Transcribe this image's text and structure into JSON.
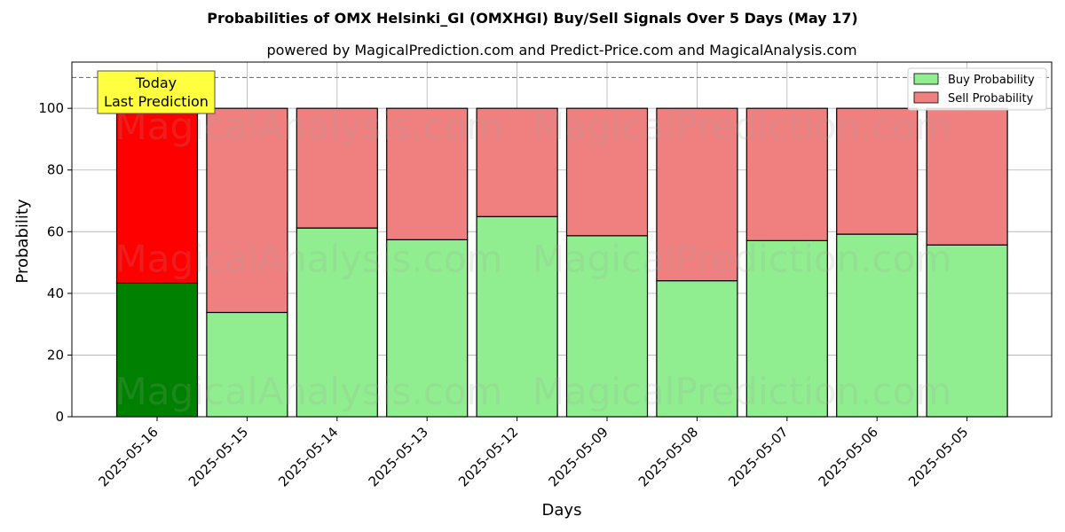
{
  "chart_data": {
    "type": "bar",
    "stacked": true,
    "title": "Probabilities of OMX Helsinki_GI (OMXHGI) Buy/Sell Signals Over 5 Days (May 17)",
    "subtitle": "powered by MagicalPrediction.com and Predict-Price.com and MagicalAnalysis.com",
    "xlabel": "Days",
    "ylabel": "Probability",
    "ylim": [
      0,
      115
    ],
    "yticks": [
      0,
      20,
      40,
      60,
      80,
      100
    ],
    "grid": true,
    "legend_position": "top-right",
    "reference_line": 110,
    "categories": [
      "2025-05-16",
      "2025-05-15",
      "2025-05-14",
      "2025-05-13",
      "2025-05-12",
      "2025-05-09",
      "2025-05-08",
      "2025-05-07",
      "2025-05-06",
      "2025-05-05"
    ],
    "series": [
      {
        "name": "Buy Probability",
        "values": [
          43.3,
          33.8,
          61.2,
          57.4,
          64.9,
          58.7,
          44.1,
          57.1,
          59.2,
          55.7
        ]
      },
      {
        "name": "Sell Probability",
        "values": [
          56.7,
          66.2,
          38.8,
          42.6,
          35.1,
          41.3,
          55.9,
          42.9,
          40.8,
          44.3
        ]
      }
    ],
    "annotation": {
      "line1": "Today",
      "line2": "Last Prediction"
    },
    "watermarks": [
      "MagicalAnalysis.com",
      "MagicalPrediction.com"
    ]
  },
  "colors": {
    "buy_today": "#008000",
    "sell_today": "#ff0000",
    "buy": "#90ee90",
    "sell": "#f08080",
    "annotation_bg": "#ffff40",
    "grid": "#b0b0b0"
  }
}
